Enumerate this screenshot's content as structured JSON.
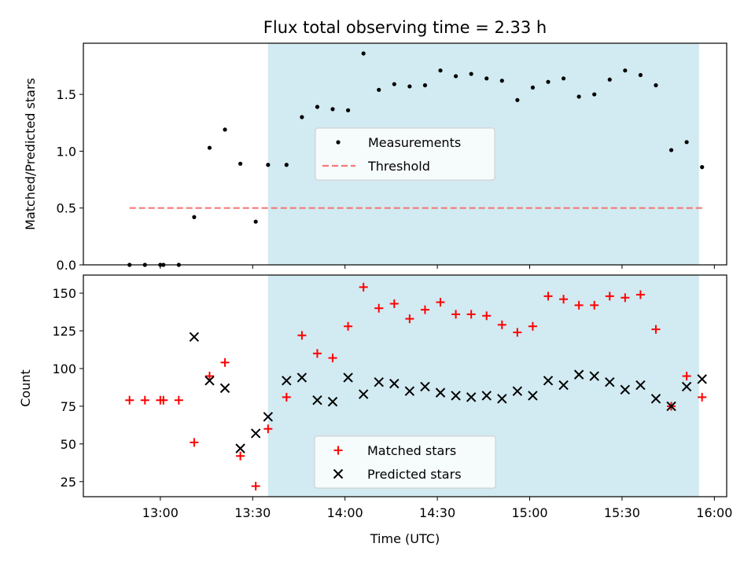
{
  "title": "Flux total observing time = 2.33 h",
  "colors": {
    "measurements": "#000000",
    "threshold": "#f47a7a",
    "matched": "#ff0000",
    "predicted": "#000000",
    "highlight": "#add8e6"
  },
  "chart_data": [
    {
      "type": "scatter",
      "ylabel": "Matched/Predicted stars",
      "ylim": [
        0,
        1.95
      ],
      "yticks": [
        "0.0",
        "0.5",
        "1.0",
        "1.5"
      ],
      "grid": false,
      "legend": "center",
      "highlight_range": [
        "13:35",
        "15:55"
      ],
      "series": [
        {
          "name": "Measurements",
          "x": [
            "12:50",
            "12:55",
            "13:00",
            "13:01",
            "13:06",
            "13:11",
            "13:16",
            "13:21",
            "13:26",
            "13:31",
            "13:35",
            "13:41",
            "13:46",
            "13:51",
            "13:56",
            "14:01",
            "14:06",
            "14:11",
            "14:16",
            "14:21",
            "14:26",
            "14:31",
            "14:36",
            "14:41",
            "14:46",
            "14:51",
            "14:56",
            "15:01",
            "15:06",
            "15:11",
            "15:16",
            "15:21",
            "15:26",
            "15:31",
            "15:36",
            "15:41",
            "15:46",
            "15:51",
            "15:56"
          ],
          "y": [
            0,
            0,
            0,
            0,
            0,
            0.42,
            1.03,
            1.19,
            0.89,
            0.38,
            0.88,
            0.88,
            1.3,
            1.39,
            1.37,
            1.36,
            1.86,
            1.54,
            1.59,
            1.57,
            1.58,
            1.71,
            1.66,
            1.68,
            1.64,
            1.62,
            1.45,
            1.56,
            1.61,
            1.64,
            1.48,
            1.5,
            1.63,
            1.71,
            1.67,
            1.58,
            1.01,
            1.08,
            0.86
          ]
        },
        {
          "name": "Threshold",
          "x": [
            "12:50",
            "15:56"
          ],
          "y": [
            0.5,
            0.5
          ]
        }
      ]
    },
    {
      "type": "scatter",
      "xlabel": "Time (UTC)",
      "ylabel": "Count",
      "ylim": [
        15,
        162
      ],
      "yticks": [
        "25",
        "50",
        "75",
        "100",
        "125",
        "150"
      ],
      "xticks": [
        "13:00",
        "13:30",
        "14:00",
        "14:30",
        "15:00",
        "15:30",
        "16:00"
      ],
      "grid": false,
      "legend": "lower center",
      "highlight_range": [
        "13:35",
        "15:55"
      ],
      "series": [
        {
          "name": "Matched stars",
          "x": [
            "12:50",
            "12:55",
            "13:00",
            "13:01",
            "13:06",
            "13:11",
            "13:16",
            "13:21",
            "13:26",
            "13:31",
            "13:35",
            "13:41",
            "13:46",
            "13:51",
            "13:56",
            "14:01",
            "14:06",
            "14:11",
            "14:16",
            "14:21",
            "14:26",
            "14:31",
            "14:36",
            "14:41",
            "14:46",
            "14:51",
            "14:56",
            "15:01",
            "15:06",
            "15:11",
            "15:16",
            "15:21",
            "15:26",
            "15:31",
            "15:36",
            "15:41",
            "15:46",
            "15:51",
            "15:56"
          ],
          "y": [
            79,
            79,
            79,
            79,
            79,
            51,
            95,
            104,
            42,
            22,
            60,
            81,
            122,
            110,
            107,
            128,
            154,
            140,
            143,
            133,
            139,
            144,
            136,
            136,
            135,
            129,
            124,
            128,
            148,
            146,
            142,
            142,
            148,
            147,
            149,
            126,
            75,
            95,
            81
          ]
        },
        {
          "name": "Predicted stars",
          "x": [
            "13:11",
            "13:16",
            "13:21",
            "13:26",
            "13:31",
            "13:35",
            "13:41",
            "13:46",
            "13:51",
            "13:56",
            "14:01",
            "14:06",
            "14:11",
            "14:16",
            "14:21",
            "14:26",
            "14:31",
            "14:36",
            "14:41",
            "14:46",
            "14:51",
            "14:56",
            "15:01",
            "15:06",
            "15:11",
            "15:16",
            "15:21",
            "15:26",
            "15:31",
            "15:36",
            "15:41",
            "15:46",
            "15:51",
            "15:56"
          ],
          "y": [
            121,
            92,
            87,
            47,
            57,
            68,
            92,
            94,
            79,
            78,
            94,
            83,
            91,
            90,
            85,
            88,
            84,
            82,
            81,
            82,
            80,
            85,
            82,
            92,
            89,
            96,
            95,
            91,
            86,
            89,
            80,
            75,
            88,
            93
          ]
        }
      ]
    }
  ]
}
